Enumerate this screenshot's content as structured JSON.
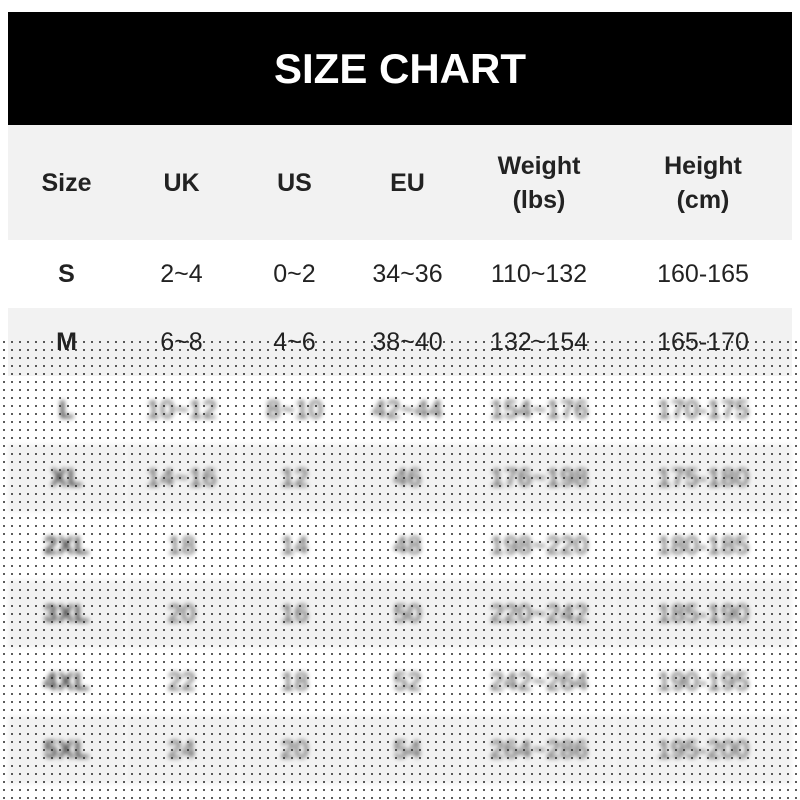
{
  "title": "SIZE CHART",
  "headers": [
    [
      "Size",
      ""
    ],
    [
      "UK",
      ""
    ],
    [
      "US",
      ""
    ],
    [
      "EU",
      ""
    ],
    [
      "Weight",
      "(lbs)"
    ],
    [
      "Height",
      "(cm)"
    ]
  ],
  "rows": [
    [
      "S",
      "2~4",
      "0~2",
      "34~36",
      "110~132",
      "160-165"
    ],
    [
      "M",
      "6~8",
      "4~6",
      "38~40",
      "132~154",
      "165-170"
    ],
    [
      "L",
      "10~12",
      "8~10",
      "42~44",
      "154~176",
      "170-175"
    ],
    [
      "XL",
      "14~16",
      "12",
      "46",
      "176~198",
      "175-180"
    ],
    [
      "2XL",
      "18",
      "14",
      "48",
      "198~220",
      "180-185"
    ],
    [
      "3XL",
      "20",
      "16",
      "50",
      "220~242",
      "185-190"
    ],
    [
      "4XL",
      "22",
      "18",
      "52",
      "242~264",
      "190-195"
    ],
    [
      "5XL",
      "24",
      "20",
      "54",
      "264~286",
      "195-200"
    ]
  ]
}
